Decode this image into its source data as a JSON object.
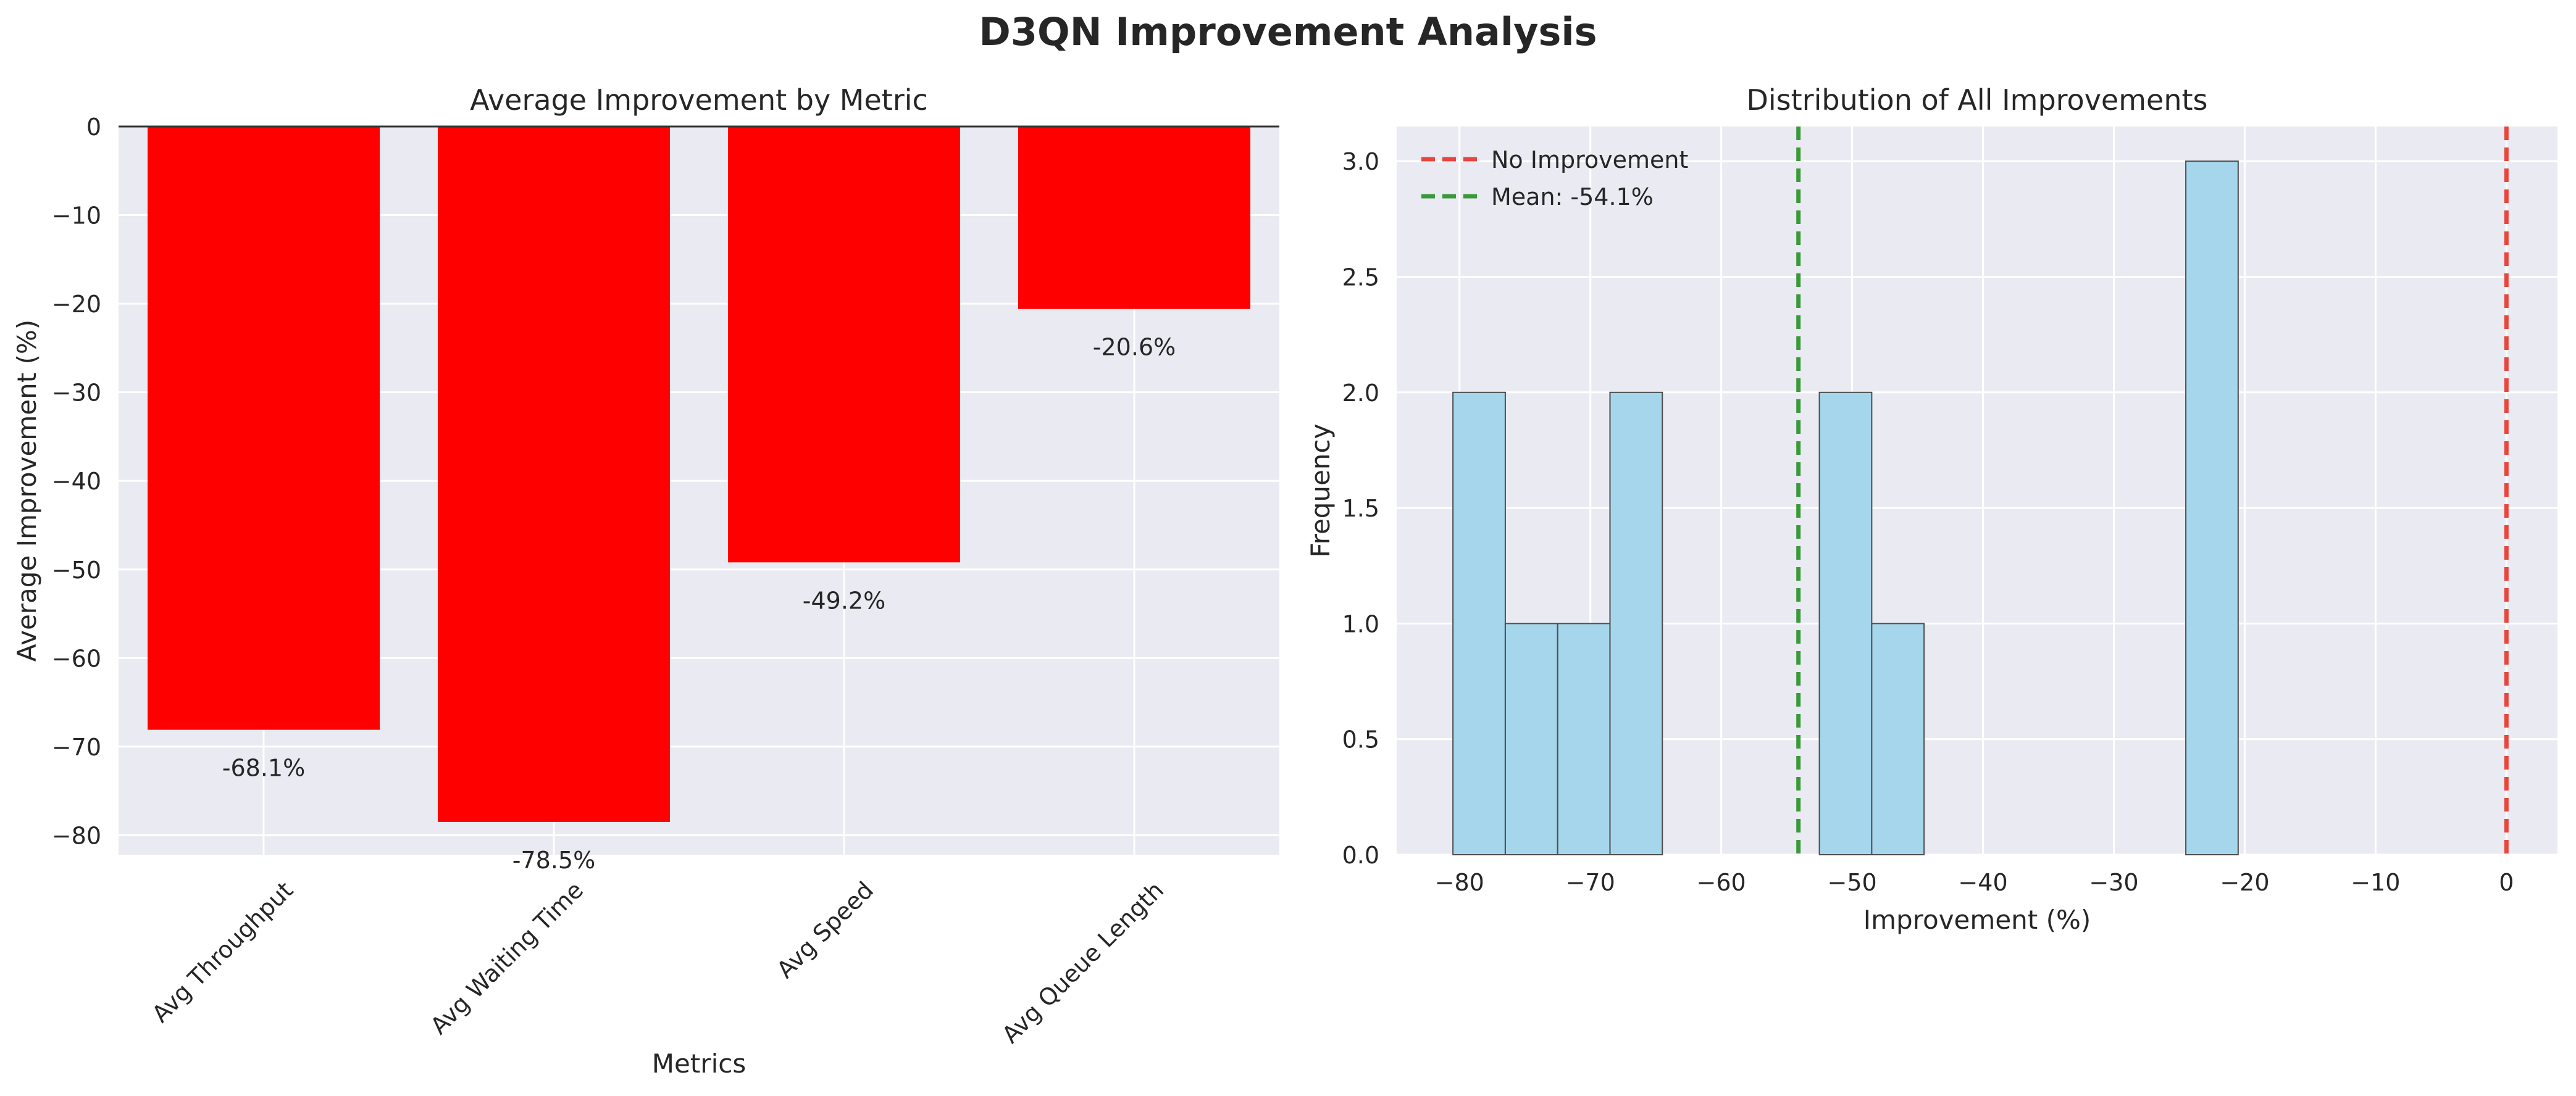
{
  "suptitle": "D3QN Improvement Analysis",
  "colors": {
    "plot_bg": "#eaeaf2",
    "grid": "#ffffff",
    "bar_fill": "#ff0000",
    "hist_fill": "#a6d6ec",
    "hist_edge": "#4d4d4d",
    "no_improvement_line": "#e8453c",
    "mean_line": "#3a9a3a",
    "text": "#262626"
  },
  "chart_data": [
    {
      "type": "bar",
      "title": "Average Improvement by Metric",
      "xlabel": "Metrics",
      "ylabel": "Average Improvement (%)",
      "categories": [
        "Avg Throughput",
        "Avg Waiting Time",
        "Avg Speed",
        "Avg Queue Length"
      ],
      "values": [
        -68.1,
        -78.5,
        -49.2,
        -20.6
      ],
      "data_labels": [
        "-68.1%",
        "-78.5%",
        "-49.2%",
        "-20.6%"
      ],
      "ylim": [
        -82.2,
        0
      ],
      "yticks": [
        0,
        -10,
        -20,
        -30,
        -40,
        -50,
        -60,
        -70,
        -80
      ],
      "ytick_labels": [
        "0",
        "−10",
        "−20",
        "−30",
        "−40",
        "−50",
        "−60",
        "−70",
        "−80"
      ],
      "grid": true,
      "zero_line": true
    },
    {
      "type": "histogram",
      "title": "Distribution of All Improvements",
      "xlabel": "Improvement (%)",
      "ylabel": "Frequency",
      "bin_edges": [
        -80.5,
        -76.5,
        -72.5,
        -68.5,
        -64.5,
        -60.5,
        -56.5,
        -52.5,
        -48.5,
        -44.5,
        -40.5,
        -36.5,
        -32.5,
        -28.5,
        -24.5,
        -20.5
      ],
      "counts": [
        2,
        1,
        1,
        2,
        0,
        0,
        0,
        2,
        1,
        0,
        0,
        0,
        0,
        0,
        3
      ],
      "xlim": [
        -84.8,
        3.9
      ],
      "ylim": [
        0,
        3.15
      ],
      "xticks": [
        -80,
        -70,
        -60,
        -50,
        -40,
        -30,
        -20,
        -10,
        0
      ],
      "xtick_labels": [
        "−80",
        "−70",
        "−60",
        "−50",
        "−40",
        "−30",
        "−20",
        "−10",
        "0"
      ],
      "yticks": [
        0,
        0.5,
        1.0,
        1.5,
        2.0,
        2.5,
        3.0
      ],
      "ytick_labels": [
        "0.0",
        "0.5",
        "1.0",
        "1.5",
        "2.0",
        "2.5",
        "3.0"
      ],
      "reference_lines": [
        {
          "name": "No Improvement",
          "x": 0,
          "color_key": "no_improvement_line"
        },
        {
          "name": "Mean: -54.1%",
          "x": -54.1,
          "color_key": "mean_line"
        }
      ],
      "legend_position": "upper-left",
      "grid": true
    }
  ]
}
